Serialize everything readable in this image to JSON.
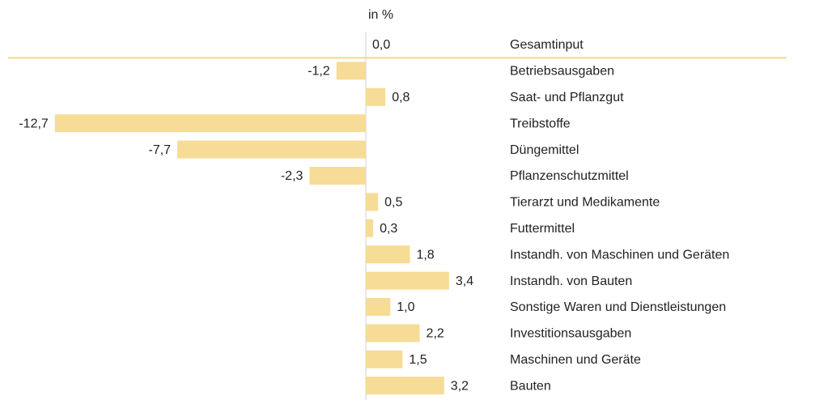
{
  "chart_data": {
    "type": "bar",
    "orientation": "horizontal",
    "axis_label": "in %",
    "color": "#f6dc96",
    "categories": [
      "Gesamtinput",
      "Betriebsausgaben",
      "Saat- und Pflanzgut",
      "Treibstoffe",
      "Düngemittel",
      "Pflanzenschutzmittel",
      "Tierarzt und Medikamente",
      "Futtermittel",
      "Instandh. von Maschinen und Geräten",
      "Instandh. von Bauten",
      "Sonstige Waren und Dienstleistungen",
      "Investitionsausgaben",
      "Maschinen und Geräte",
      "Bauten"
    ],
    "values": [
      0.0,
      -1.2,
      0.8,
      -12.7,
      -7.7,
      -2.3,
      0.5,
      0.3,
      1.8,
      3.4,
      1.0,
      2.2,
      1.5,
      3.2
    ],
    "value_labels": [
      "0,0",
      "-1,2",
      "0,8",
      "-12,7",
      "-7,7",
      "-2,3",
      "0,5",
      "0,3",
      "1,8",
      "3,4",
      "1,0",
      "2,2",
      "1,5",
      "3,2"
    ]
  }
}
